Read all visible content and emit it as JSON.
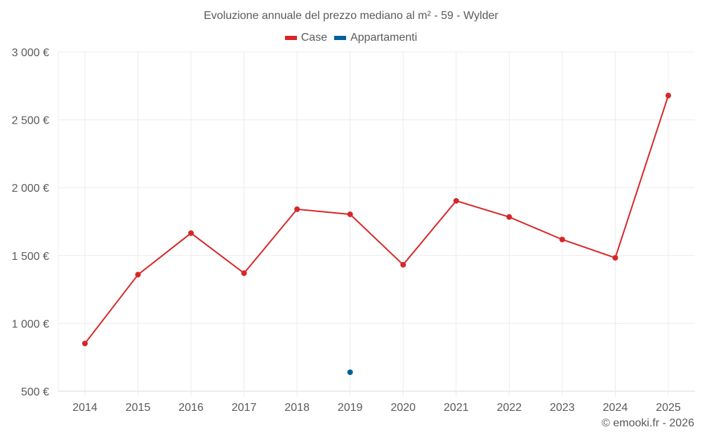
{
  "chart_data": {
    "type": "line",
    "title": "Evoluzione annuale del prezzo mediano al m² - 59 - Wylder",
    "xlabel": "",
    "ylabel": "",
    "categories": [
      "2014",
      "2015",
      "2016",
      "2017",
      "2018",
      "2019",
      "2020",
      "2021",
      "2022",
      "2023",
      "2024",
      "2025"
    ],
    "series": [
      {
        "name": "Case",
        "color": "#d62728",
        "values": [
          852,
          1359,
          1665,
          1370,
          1841,
          1804,
          1432,
          1903,
          1784,
          1618,
          1483,
          2679
        ]
      },
      {
        "name": "Appartamenti",
        "color": "#04609a",
        "values": [
          null,
          null,
          null,
          null,
          null,
          640,
          null,
          null,
          null,
          null,
          null,
          null
        ]
      }
    ],
    "ylim": [
      500,
      3000
    ],
    "yticks": [
      500,
      1000,
      1500,
      2000,
      2500,
      3000
    ],
    "ytick_labels": [
      "500 €",
      "1 000 €",
      "1 500 €",
      "2 000 €",
      "2 500 €",
      "3 000 €"
    ],
    "grid": true,
    "legend_position": "top"
  },
  "legend": [
    {
      "label": "Case",
      "color": "#d62728"
    },
    {
      "label": "Appartamenti",
      "color": "#04609a"
    }
  ],
  "credit": "© emooki.fr - 2026"
}
